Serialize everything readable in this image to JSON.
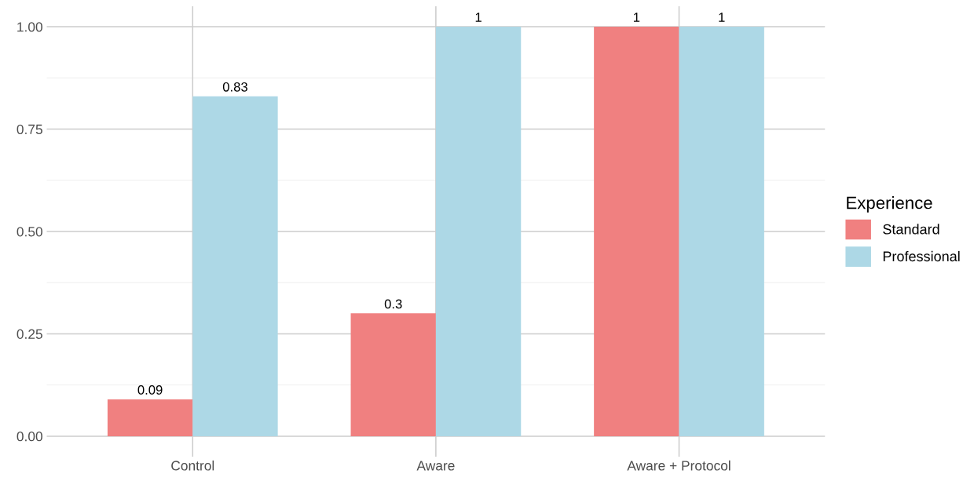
{
  "chart_data": {
    "type": "bar",
    "categories": [
      "Control",
      "Aware",
      "Aware + Protocol"
    ],
    "series": [
      {
        "name": "Standard",
        "color": "#f08080",
        "values": [
          0.09,
          0.3,
          1
        ]
      },
      {
        "name": "Professional",
        "color": "#add8e6",
        "values": [
          0.83,
          1,
          1
        ]
      }
    ],
    "legend_title": "Experience",
    "legend": "right",
    "data_labels": true,
    "grid": true,
    "ylim": [
      -0.05,
      1.05
    ],
    "yticks": [
      {
        "value": 0,
        "label": "0.00"
      },
      {
        "value": 0.25,
        "label": "0.25"
      },
      {
        "value": 0.5,
        "label": "0.50"
      },
      {
        "value": 0.75,
        "label": "0.75"
      },
      {
        "value": 1,
        "label": "1.00"
      }
    ]
  }
}
